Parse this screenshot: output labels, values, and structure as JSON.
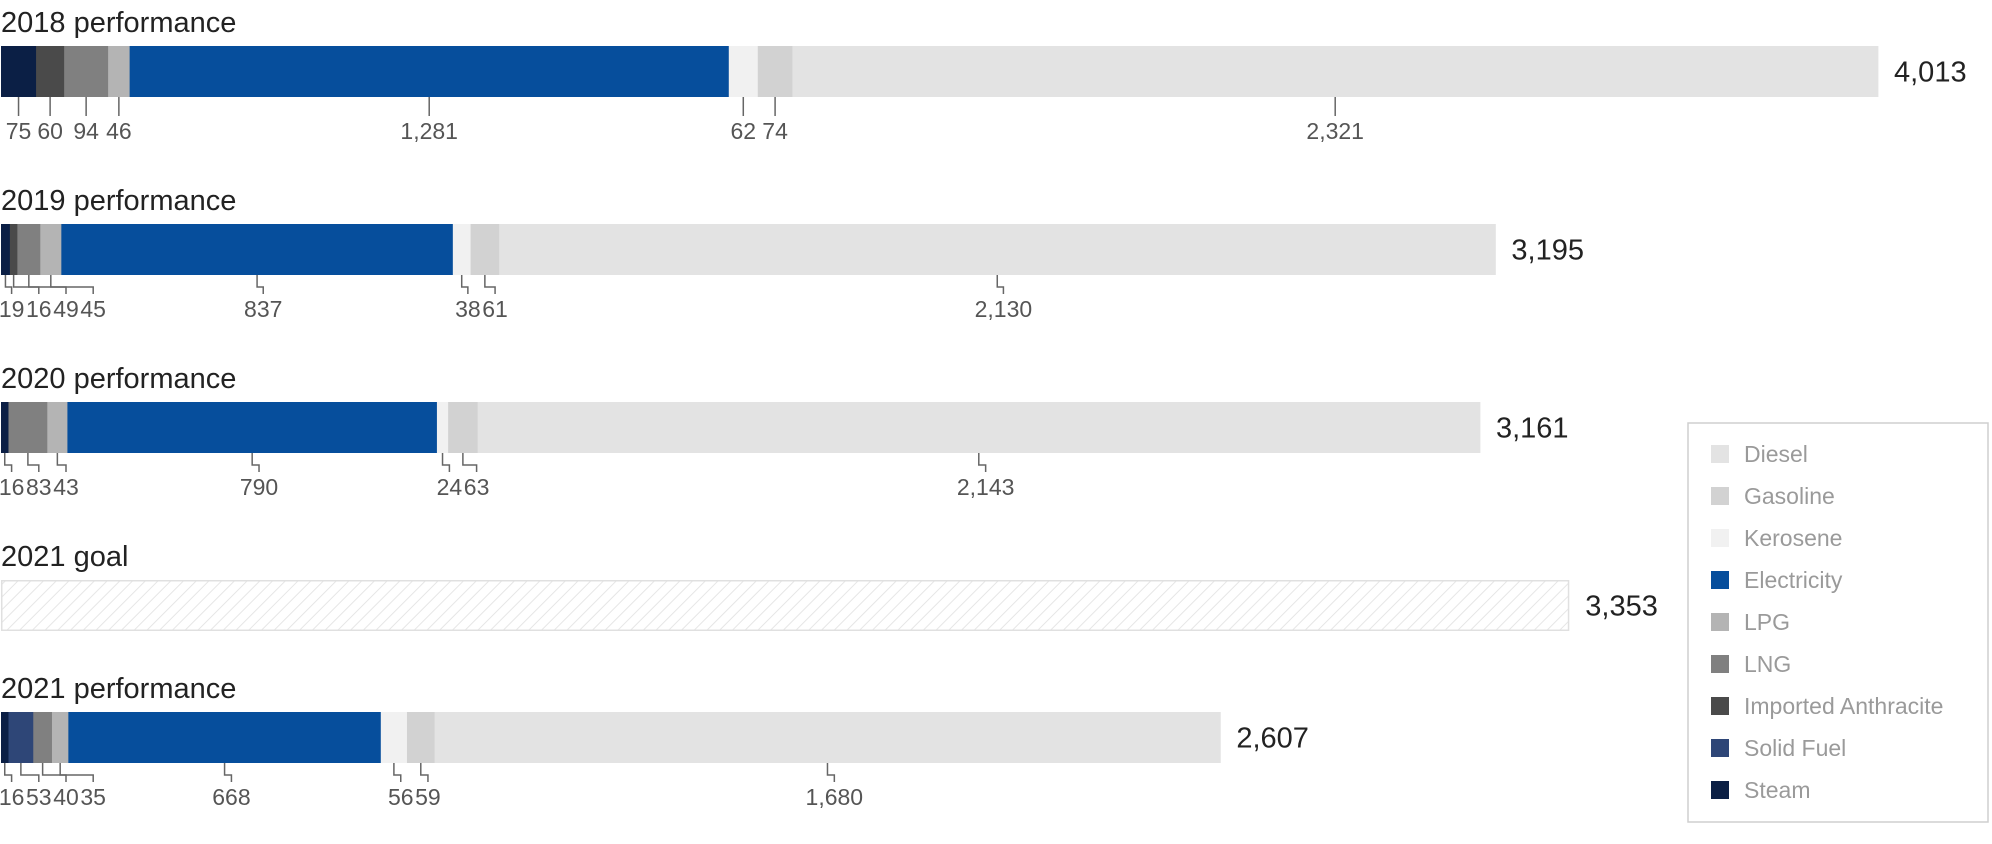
{
  "chart_data": {
    "type": "bar",
    "orientation": "horizontal",
    "stacked": true,
    "legend_position": "right",
    "legend": [
      {
        "name": "Diesel",
        "color": "#e3e3e3"
      },
      {
        "name": "Gasoline",
        "color": "#d2d2d2"
      },
      {
        "name": "Kerosene",
        "color": "#f1f1f1"
      },
      {
        "name": "Electricity",
        "color": "#064e9c"
      },
      {
        "name": "LPG",
        "color": "#b4b4b4"
      },
      {
        "name": "LNG",
        "color": "#808080"
      },
      {
        "name": "Imported Anthracite",
        "color": "#4a4a4a"
      },
      {
        "name": "Solid Fuel",
        "color": "#2e4677"
      },
      {
        "name": "Steam",
        "color": "#0b1f45"
      }
    ],
    "rows": [
      {
        "title": "2018 performance",
        "total": 4013,
        "total_label": "4,013",
        "segments": [
          {
            "series": "Steam",
            "value": 75,
            "label": "75"
          },
          {
            "series": "Imported Anthracite",
            "value": 60,
            "label": "60"
          },
          {
            "series": "LNG",
            "value": 94,
            "label": "94"
          },
          {
            "series": "LPG",
            "value": 46,
            "label": "46"
          },
          {
            "series": "Electricity",
            "value": 1281,
            "label": "1,281"
          },
          {
            "series": "Kerosene",
            "value": 62,
            "label": "62"
          },
          {
            "series": "Gasoline",
            "value": 74,
            "label": "74"
          },
          {
            "series": "Diesel",
            "value": 2321,
            "label": "2,321"
          }
        ]
      },
      {
        "title": "2019 performance",
        "total": 3195,
        "total_label": "3,195",
        "segments": [
          {
            "series": "Steam",
            "value": 19,
            "label": "19"
          },
          {
            "series": "Imported Anthracite",
            "value": 16,
            "label": "16"
          },
          {
            "series": "LNG",
            "value": 49,
            "label": "49"
          },
          {
            "series": "LPG",
            "value": 45,
            "label": "45"
          },
          {
            "series": "Electricity",
            "value": 837,
            "label": "837"
          },
          {
            "series": "Kerosene",
            "value": 38,
            "label": "38"
          },
          {
            "series": "Gasoline",
            "value": 61,
            "label": "61"
          },
          {
            "series": "Diesel",
            "value": 2130,
            "label": "2,130"
          }
        ]
      },
      {
        "title": "2020 performance",
        "total": 3161,
        "total_label": "3,161",
        "segments": [
          {
            "series": "Steam",
            "value": 16,
            "label": "16"
          },
          {
            "series": "LNG",
            "value": 83,
            "label": "83"
          },
          {
            "series": "LPG",
            "value": 43,
            "label": "43"
          },
          {
            "series": "Electricity",
            "value": 790,
            "label": "790"
          },
          {
            "series": "Kerosene",
            "value": 24,
            "label": "24"
          },
          {
            "series": "Gasoline",
            "value": 63,
            "label": "63"
          },
          {
            "series": "Diesel",
            "value": 2143,
            "label": "2,143"
          }
        ]
      },
      {
        "title": "2021 goal",
        "total": 3353,
        "total_label": "3,353",
        "goal": true,
        "segments": []
      },
      {
        "title": "2021 performance",
        "total": 2607,
        "total_label": "2,607",
        "segments": [
          {
            "series": "Steam",
            "value": 16,
            "label": "16"
          },
          {
            "series": "Solid Fuel",
            "value": 53,
            "label": "53"
          },
          {
            "series": "LNG",
            "value": 40,
            "label": "40"
          },
          {
            "series": "LPG",
            "value": 35,
            "label": "35"
          },
          {
            "series": "Electricity",
            "value": 668,
            "label": "668"
          },
          {
            "series": "Kerosene",
            "value": 56,
            "label": "56"
          },
          {
            "series": "Gasoline",
            "value": 59,
            "label": "59"
          },
          {
            "series": "Diesel",
            "value": 1680,
            "label": "1,680"
          }
        ]
      }
    ]
  }
}
